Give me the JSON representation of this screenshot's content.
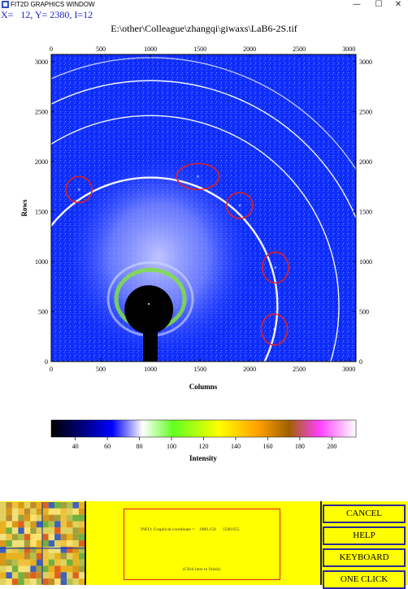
{
  "window": {
    "title": "FIT2D GRAPHICS WINDOW",
    "minimize_glyph": "—",
    "maximize_glyph": "☐",
    "close_glyph": "✕"
  },
  "readout": {
    "coordinates": "X=   12, Y= 2380, I=12"
  },
  "image": {
    "title": "E:\\other\\Colleague\\zhangqi\\giwaxs\\LaB6-2S.tif",
    "x_axis_label": "Columns",
    "y_axis_label": "Rows",
    "x_ticks": [
      "0",
      "500",
      "1000",
      "1500",
      "2000",
      "2500",
      "3000"
    ],
    "y_ticks": [
      "0",
      "500",
      "1000",
      "1500",
      "2000",
      "2500",
      "3000"
    ],
    "x_tick_values": [
      0,
      500,
      1000,
      1500,
      2000,
      2500,
      3000
    ],
    "y_tick_values": [
      0,
      500,
      1000,
      1500,
      2000,
      2500,
      3000
    ],
    "x_range": [
      0,
      3072
    ],
    "y_range": [
      0,
      3072
    ],
    "beam_center": [
      1000,
      560
    ],
    "ring_radii": [
      1280,
      1900,
      2250,
      2480
    ],
    "highlight_markers": [
      {
        "x": 280,
        "y": 1720
      },
      {
        "x": 1480,
        "y": 1850
      },
      {
        "x": 1900,
        "y": 1560
      },
      {
        "x": 2260,
        "y": 940
      },
      {
        "x": 2250,
        "y": 320
      }
    ],
    "background_color": "#1030ff",
    "ring_color": "#ffffff",
    "marker_color": "#e02020"
  },
  "colorbar": {
    "label": "Intensity",
    "ticks": [
      "40",
      "60",
      "80",
      "100",
      "120",
      "140",
      "160",
      "180",
      "200"
    ],
    "tick_values": [
      40,
      60,
      80,
      100,
      120,
      140,
      160,
      180,
      200
    ],
    "range": [
      25,
      215
    ],
    "stops": [
      "#000000",
      "#000060",
      "#0000ff",
      "#ffffff",
      "#60ff20",
      "#ffff00",
      "#ffa000",
      "#a06000",
      "#ff40ff",
      "#ffffff"
    ]
  },
  "info_panel": {
    "message": "INFO: Graphical coordinate =    1889.150      1580.055",
    "finish_hint": "(Click here to finish)"
  },
  "buttons": {
    "cancel": "CANCEL",
    "help": "HELP",
    "keyboard": "KEYBOARD",
    "one_click": "ONE CLICK"
  }
}
